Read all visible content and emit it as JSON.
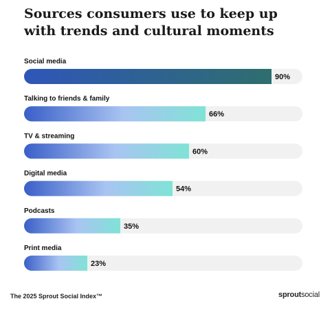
{
  "chart_data": {
    "type": "bar",
    "orientation": "horizontal",
    "title": "Sources consumers use to keep up with trends and cultural moments",
    "categories": [
      "Social media",
      "Talking to friends & family",
      "TV & streaming",
      "Digital media",
      "Podcasts",
      "Print media"
    ],
    "values": [
      90,
      66,
      60,
      54,
      35,
      23
    ],
    "value_labels": [
      "90%",
      "66%",
      "60%",
      "54%",
      "35%",
      "23%"
    ],
    "unit": "%",
    "xlim": [
      0,
      100
    ],
    "grid": false,
    "colors": {
      "highlight_start": "#2f56b8",
      "highlight_end": "#2e6e6e",
      "gradient_start": "#3a5fc8",
      "gradient_mid": "#a9c4f2",
      "gradient_end": "#7fe3d6",
      "track": "#f1f1f1"
    }
  },
  "footer": {
    "source": "The 2025 Sprout Social Index™",
    "brand_bold": "sprout",
    "brand_light": "social"
  }
}
